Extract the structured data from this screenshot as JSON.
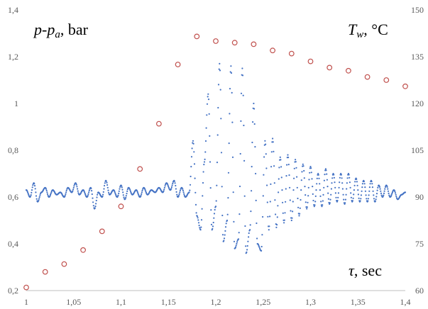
{
  "chart_data": {
    "type": "scatter",
    "title": "",
    "annotations": {
      "left_label_main": "p-p",
      "left_label_sub": "a",
      "left_label_unit": ", bar",
      "right_label_main": "T",
      "right_label_sub": "w",
      "right_label_unit": ", °C",
      "x_label_main": "τ",
      "x_label_unit": ", sec"
    },
    "x_axis": {
      "range": [
        1,
        1.4
      ],
      "ticks": [
        1,
        1.05,
        1.1,
        1.15,
        1.2,
        1.25,
        1.3,
        1.35,
        1.4
      ],
      "tick_labels": [
        "1",
        "1,05",
        "1,1",
        "1,15",
        "1,2",
        "1,25",
        "1,3",
        "1,35",
        "1,4"
      ]
    },
    "y_left_axis": {
      "range": [
        0.2,
        1.4
      ],
      "ticks": [
        0.2,
        0.4,
        0.6,
        0.8,
        1.0,
        1.2,
        1.4
      ],
      "tick_labels": [
        "0,2",
        "0,4",
        "0,6",
        "0,8",
        "1",
        "1,2",
        "1,4"
      ]
    },
    "y_right_axis": {
      "range": [
        60,
        150
      ],
      "ticks": [
        60,
        75,
        90,
        105,
        120,
        135,
        150
      ],
      "tick_labels": [
        "60",
        "75",
        "90",
        "105",
        "120",
        "135",
        "150"
      ]
    },
    "grid": false,
    "legend": "none",
    "series": [
      {
        "axis": "left",
        "marker": "small-dot",
        "color": "#4472c4",
        "sample_step": 0.001,
        "pressure_curve": {
          "t": [
            1.0,
            1.004,
            1.008,
            1.012,
            1.016,
            1.02,
            1.024,
            1.028,
            1.032,
            1.036,
            1.04,
            1.044,
            1.048,
            1.052,
            1.056,
            1.06,
            1.064,
            1.068,
            1.072,
            1.076,
            1.08,
            1.084,
            1.088,
            1.092,
            1.096,
            1.1,
            1.104,
            1.108,
            1.112,
            1.116,
            1.12,
            1.124,
            1.128,
            1.132,
            1.136,
            1.14,
            1.144,
            1.148,
            1.152,
            1.156,
            1.16,
            1.164,
            1.168,
            1.172,
            1.176,
            1.18,
            1.184,
            1.188,
            1.192,
            1.196,
            1.2,
            1.204,
            1.208,
            1.212,
            1.216,
            1.22,
            1.224,
            1.228,
            1.232,
            1.236,
            1.24,
            1.244,
            1.248,
            1.252,
            1.256,
            1.26,
            1.264,
            1.268,
            1.272,
            1.276,
            1.28,
            1.284,
            1.288,
            1.292,
            1.296,
            1.3,
            1.304,
            1.308,
            1.312,
            1.316,
            1.32,
            1.324,
            1.328,
            1.332,
            1.336,
            1.34,
            1.344,
            1.348,
            1.352,
            1.356,
            1.36,
            1.364,
            1.368,
            1.372,
            1.376,
            1.38,
            1.384,
            1.388,
            1.392,
            1.396,
            1.4
          ],
          "p": [
            0.63,
            0.6,
            0.66,
            0.58,
            0.62,
            0.64,
            0.6,
            0.63,
            0.61,
            0.62,
            0.6,
            0.64,
            0.62,
            0.66,
            0.61,
            0.63,
            0.6,
            0.64,
            0.55,
            0.62,
            0.6,
            0.67,
            0.61,
            0.63,
            0.6,
            0.65,
            0.59,
            0.64,
            0.61,
            0.63,
            0.6,
            0.64,
            0.61,
            0.63,
            0.62,
            0.64,
            0.62,
            0.66,
            0.63,
            0.67,
            0.6,
            0.64,
            0.6,
            0.62,
            0.84,
            0.52,
            0.46,
            0.75,
            1.04,
            0.46,
            0.56,
            1.17,
            0.41,
            0.5,
            1.16,
            0.38,
            0.42,
            1.15,
            0.36,
            0.46,
            1.0,
            0.4,
            0.37,
            0.84,
            0.46,
            0.85,
            0.47,
            0.77,
            0.49,
            0.78,
            0.5,
            0.76,
            0.52,
            0.74,
            0.55,
            0.73,
            0.56,
            0.7,
            0.56,
            0.72,
            0.57,
            0.7,
            0.58,
            0.7,
            0.57,
            0.7,
            0.58,
            0.68,
            0.58,
            0.67,
            0.58,
            0.67,
            0.58,
            0.65,
            0.6,
            0.65,
            0.6,
            0.63,
            0.59,
            0.61,
            0.62
          ]
        }
      },
      {
        "axis": "right",
        "marker": "open-circle",
        "color": "#c0504d",
        "x": [
          1.0,
          1.02,
          1.04,
          1.06,
          1.08,
          1.1,
          1.12,
          1.14,
          1.16,
          1.18,
          1.2,
          1.22,
          1.24,
          1.26,
          1.28,
          1.3,
          1.32,
          1.34,
          1.36,
          1.38,
          1.4
        ],
        "y": [
          61,
          66,
          68.5,
          73,
          79,
          87,
          99,
          113.5,
          132.5,
          141.5,
          140,
          139.5,
          139,
          137,
          136,
          133.5,
          131.5,
          130.5,
          128.5,
          127.5,
          125.5
        ]
      }
    ]
  }
}
